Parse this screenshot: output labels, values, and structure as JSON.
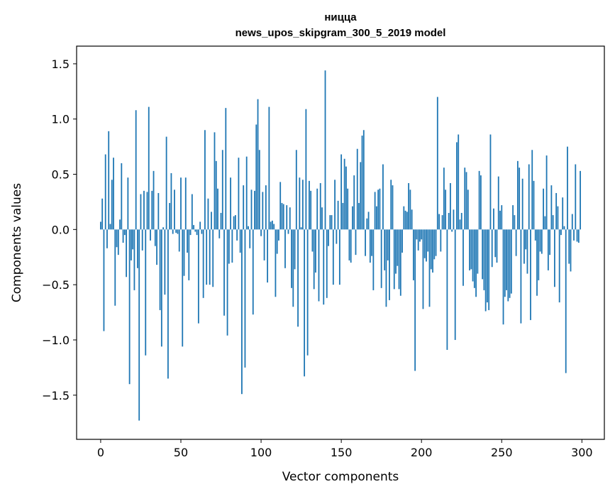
{
  "chart_data": {
    "type": "bar",
    "title": "ницца",
    "subtitle": "news_upos_skipgram_300_5_2019 model",
    "xlabel": "Vector components",
    "ylabel": "Components values",
    "xlim": [
      -15,
      314
    ],
    "ylim": [
      -1.9,
      1.66
    ],
    "xticks": [
      0,
      50,
      100,
      150,
      200,
      250,
      300
    ],
    "yticks": [
      -1.5,
      -1.0,
      -0.5,
      0.0,
      0.5,
      1.0,
      1.5
    ],
    "ytick_labels": [
      "−1.5",
      "−1.0",
      "−0.5",
      "0.0",
      "0.5",
      "1.0",
      "1.5"
    ],
    "bar_color": "#1f77b4",
    "grid": false,
    "values": [
      0.07,
      0.28,
      -0.92,
      0.68,
      -0.17,
      0.89,
      0.05,
      0.45,
      0.65,
      -0.69,
      -0.16,
      -0.23,
      0.09,
      0.6,
      -0.12,
      -0.05,
      -0.43,
      0.47,
      -1.4,
      -0.28,
      -0.18,
      -0.55,
      1.08,
      -0.35,
      -1.73,
      0.32,
      -0.19,
      0.35,
      -1.14,
      0.34,
      1.11,
      -0.1,
      0.35,
      0.53,
      -0.15,
      -0.32,
      0.33,
      -0.73,
      -1.06,
      0.02,
      -0.59,
      0.84,
      -1.35,
      0.24,
      0.51,
      -0.04,
      0.36,
      -0.03,
      -0.04,
      -0.2,
      0.47,
      -1.06,
      -0.42,
      0.47,
      -0.21,
      -0.46,
      -0.05,
      0.32,
      0.04,
      -0.02,
      -0.05,
      -0.85,
      0.07,
      -0.04,
      -0.62,
      0.9,
      -0.5,
      0.28,
      -0.5,
      0.16,
      -0.52,
      0.88,
      0.62,
      0.37,
      -0.08,
      0.15,
      0.72,
      -0.78,
      1.1,
      -0.96,
      -0.31,
      0.47,
      -0.3,
      0.12,
      0.13,
      -0.1,
      0.65,
      -0.21,
      -1.49,
      0.4,
      -1.25,
      0.66,
      0.03,
      -0.17,
      0.36,
      -0.77,
      0.35,
      0.95,
      1.18,
      0.72,
      -0.06,
      0.34,
      -0.28,
      0.4,
      -0.48,
      1.11,
      0.07,
      0.08,
      0.05,
      -0.61,
      -0.22,
      -0.1,
      0.43,
      0.24,
      0.23,
      -0.35,
      0.22,
      -0.04,
      0.2,
      -0.53,
      -0.7,
      -0.36,
      0.72,
      -0.88,
      0.47,
      0.02,
      0.45,
      -1.33,
      1.09,
      -1.14,
      0.44,
      0.35,
      -0.2,
      -0.54,
      -0.39,
      0.37,
      -0.65,
      0.42,
      0.2,
      -0.68,
      1.44,
      -0.62,
      -0.15,
      0.13,
      0.13,
      -0.5,
      0.45,
      -0.13,
      0.26,
      -0.5,
      0.68,
      0.24,
      0.64,
      0.57,
      0.37,
      -0.28,
      -0.3,
      0.21,
      0.49,
      -0.23,
      0.73,
      0.24,
      0.61,
      0.85,
      0.9,
      -0.24,
      0.1,
      0.16,
      -0.3,
      -0.24,
      -0.55,
      0.34,
      0.21,
      0.36,
      0.37,
      -0.53,
      0.59,
      -0.37,
      -0.7,
      -0.28,
      -0.64,
      0.45,
      0.4,
      -0.54,
      -0.4,
      -0.33,
      -0.54,
      -0.6,
      -0.21,
      0.21,
      0.17,
      0.16,
      0.42,
      0.36,
      0.18,
      -0.46,
      -1.28,
      -0.09,
      -0.19,
      -0.11,
      -0.09,
      -0.72,
      -0.26,
      -0.29,
      -0.2,
      -0.7,
      -0.36,
      -0.39,
      -0.27,
      -0.24,
      1.2,
      0.14,
      -0.2,
      0.13,
      0.56,
      0.36,
      -1.09,
      0.15,
      0.42,
      -0.02,
      0.18,
      -1.0,
      0.79,
      0.86,
      0.09,
      0.15,
      -0.51,
      0.56,
      0.52,
      0.36,
      -0.37,
      -0.36,
      -0.47,
      -0.53,
      -0.61,
      -0.4,
      0.53,
      0.49,
      -0.45,
      -0.55,
      -0.74,
      -0.66,
      -0.73,
      0.86,
      -0.34,
      0.19,
      -0.25,
      -0.3,
      0.48,
      0.17,
      0.22,
      -0.86,
      -0.61,
      -0.55,
      -0.65,
      -0.62,
      -0.58,
      0.22,
      0.13,
      -0.24,
      0.62,
      0.56,
      -0.85,
      0.46,
      -0.31,
      -0.18,
      -0.4,
      0.59,
      -0.82,
      0.72,
      0.44,
      -0.1,
      -0.6,
      -0.46,
      -0.2,
      -0.22,
      0.37,
      0.12,
      0.67,
      -0.37,
      -0.23,
      0.4,
      0.13,
      -0.52,
      0.33,
      0.21,
      -0.66,
      -0.05,
      0.29,
      0.03,
      -1.3,
      0.75,
      -0.31,
      -0.38,
      0.14,
      -0.1,
      0.59,
      -0.11,
      -0.12,
      0.53
    ]
  }
}
